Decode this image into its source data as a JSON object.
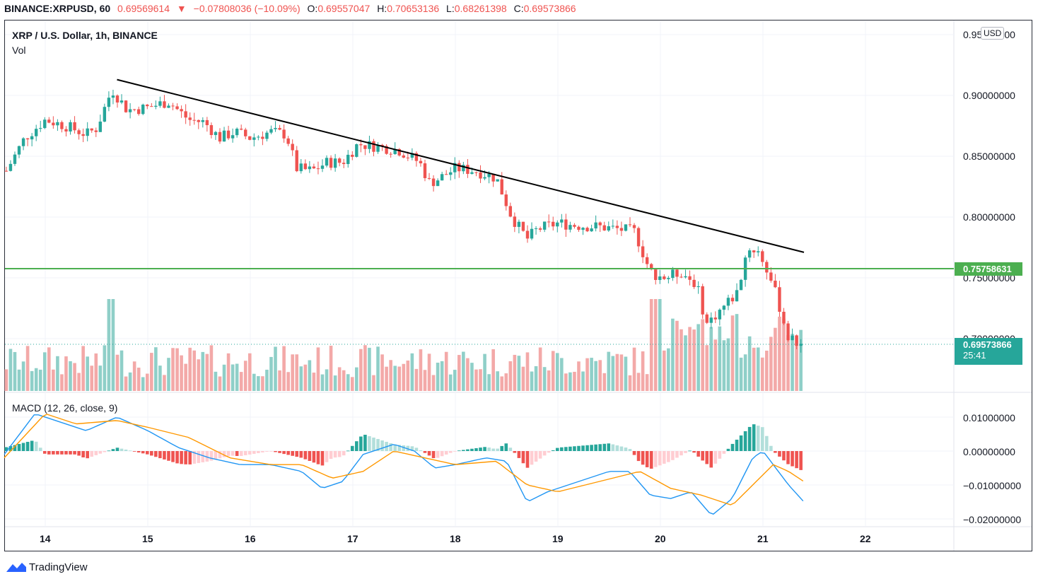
{
  "header": {
    "symbol": "BINANCE:XRPUSD, 60",
    "last": "0.69569614",
    "change": "−0.07808036 (−10.09%)",
    "o_label": "O:",
    "o": "0.69557047",
    "h_label": "H:",
    "h": "0.70653136",
    "l_label": "L:",
    "l": "0.68261398",
    "c_label": "C:",
    "c": "0.69573866"
  },
  "legend": {
    "title": "XRP / U.S. Dollar, 1h, BINANCE",
    "vol": "Vol",
    "macd": "MACD (12, 26, close, 9)"
  },
  "currency_button": "USD",
  "price_axis": [
    "0.95000000",
    "0.90000000",
    "0.85000000",
    "0.80000000",
    "0.75000000",
    "0.70000000"
  ],
  "macd_axis": [
    "0.01000000",
    "0.00000000",
    "−0.01000000",
    "−0.02000000"
  ],
  "level_tag": "0.75758631",
  "last_tag_price": "0.69573866",
  "last_tag_timer": "25:41",
  "x_axis": [
    "14",
    "15",
    "16",
    "17",
    "18",
    "19",
    "20",
    "21",
    "22"
  ],
  "brand": "TradingView",
  "colors": {
    "up": "#26a69a",
    "down": "#ef5350",
    "line": "#000000",
    "level": "#4caf50",
    "macd": "#2196f3",
    "signal": "#ff9800"
  },
  "chart_data": [
    {
      "type": "candlestick",
      "title": "XRP / U.S. Dollar, 1h, BINANCE",
      "x_ticks": [
        "14",
        "15",
        "16",
        "17",
        "18",
        "19",
        "20",
        "21",
        "22"
      ],
      "ylim": [
        0.69,
        0.955
      ],
      "close_path": [
        [
          13.6,
          0.835
        ],
        [
          13.8,
          0.865
        ],
        [
          14.0,
          0.88
        ],
        [
          14.2,
          0.875
        ],
        [
          14.4,
          0.868
        ],
        [
          14.5,
          0.873
        ],
        [
          14.65,
          0.905
        ],
        [
          14.8,
          0.888
        ],
        [
          15.0,
          0.89
        ],
        [
          15.2,
          0.895
        ],
        [
          15.4,
          0.88
        ],
        [
          15.55,
          0.878
        ],
        [
          15.7,
          0.865
        ],
        [
          15.85,
          0.87
        ],
        [
          16.0,
          0.865
        ],
        [
          16.2,
          0.87
        ],
        [
          16.35,
          0.868
        ],
        [
          16.45,
          0.84
        ],
        [
          16.6,
          0.838
        ],
        [
          16.75,
          0.845
        ],
        [
          16.9,
          0.845
        ],
        [
          17.05,
          0.86
        ],
        [
          17.25,
          0.858
        ],
        [
          17.45,
          0.855
        ],
        [
          17.65,
          0.845
        ],
        [
          17.75,
          0.828
        ],
        [
          17.85,
          0.832
        ],
        [
          18.0,
          0.84
        ],
        [
          18.2,
          0.838
        ],
        [
          18.4,
          0.832
        ],
        [
          18.55,
          0.8
        ],
        [
          18.7,
          0.782
        ],
        [
          18.8,
          0.79
        ],
        [
          19.0,
          0.795
        ],
        [
          19.2,
          0.793
        ],
        [
          19.4,
          0.792
        ],
        [
          19.6,
          0.79
        ],
        [
          19.75,
          0.788
        ],
        [
          19.9,
          0.755
        ],
        [
          20.05,
          0.75
        ],
        [
          20.2,
          0.755
        ],
        [
          20.35,
          0.745
        ],
        [
          20.45,
          0.712
        ],
        [
          20.6,
          0.725
        ],
        [
          20.75,
          0.738
        ],
        [
          20.85,
          0.775
        ],
        [
          20.95,
          0.772
        ],
        [
          21.05,
          0.755
        ],
        [
          21.15,
          0.73
        ],
        [
          21.25,
          0.7
        ],
        [
          21.35,
          0.6957
        ]
      ],
      "last_close": 0.69573866,
      "trendline": [
        [
          14.7,
          0.913
        ],
        [
          21.4,
          0.771
        ]
      ],
      "horizontal_level": 0.75758631
    },
    {
      "type": "bar",
      "title": "Vol",
      "pattern": "low volume bars through day 19, volume expanding sharply from day 20 with a spike at the start of day 20"
    },
    {
      "type": "line",
      "title": "MACD (12, 26, close, 9)",
      "ylim": [
        -0.022,
        0.012
      ],
      "series": [
        {
          "name": "MACD",
          "points": [
            [
              13.6,
              -0.001
            ],
            [
              13.9,
              0.011
            ],
            [
              14.1,
              0.009
            ],
            [
              14.4,
              0.006
            ],
            [
              14.7,
              0.01
            ],
            [
              15.0,
              0.006
            ],
            [
              15.3,
              0.001
            ],
            [
              15.6,
              -0.002
            ],
            [
              15.9,
              -0.004
            ],
            [
              16.2,
              -0.004
            ],
            [
              16.5,
              -0.006
            ],
            [
              16.7,
              -0.011
            ],
            [
              16.9,
              -0.009
            ],
            [
              17.1,
              -0.001
            ],
            [
              17.4,
              0.002
            ],
            [
              17.6,
              0.0
            ],
            [
              17.8,
              -0.005
            ],
            [
              18.0,
              -0.004
            ],
            [
              18.3,
              -0.002
            ],
            [
              18.5,
              -0.003
            ],
            [
              18.7,
              -0.015
            ],
            [
              18.9,
              -0.012
            ],
            [
              19.2,
              -0.009
            ],
            [
              19.5,
              -0.006
            ],
            [
              19.7,
              -0.006
            ],
            [
              19.9,
              -0.013
            ],
            [
              20.1,
              -0.014
            ],
            [
              20.3,
              -0.012
            ],
            [
              20.5,
              -0.019
            ],
            [
              20.7,
              -0.014
            ],
            [
              20.9,
              -0.002
            ],
            [
              21.0,
              0.0
            ],
            [
              21.1,
              -0.004
            ],
            [
              21.25,
              -0.01
            ],
            [
              21.4,
              -0.015
            ]
          ]
        },
        {
          "name": "Signal",
          "points": [
            [
              13.6,
              -0.002
            ],
            [
              14.0,
              0.011
            ],
            [
              14.3,
              0.008
            ],
            [
              14.7,
              0.009
            ],
            [
              15.0,
              0.007
            ],
            [
              15.4,
              0.004
            ],
            [
              15.8,
              -0.002
            ],
            [
              16.2,
              -0.004
            ],
            [
              16.5,
              -0.004
            ],
            [
              16.8,
              -0.008
            ],
            [
              17.1,
              -0.006
            ],
            [
              17.4,
              0.0
            ],
            [
              17.7,
              -0.002
            ],
            [
              18.0,
              -0.004
            ],
            [
              18.4,
              -0.003
            ],
            [
              18.7,
              -0.01
            ],
            [
              19.0,
              -0.012
            ],
            [
              19.4,
              -0.009
            ],
            [
              19.8,
              -0.006
            ],
            [
              20.1,
              -0.011
            ],
            [
              20.4,
              -0.013
            ],
            [
              20.7,
              -0.016
            ],
            [
              20.9,
              -0.01
            ],
            [
              21.1,
              -0.004
            ],
            [
              21.25,
              -0.006
            ],
            [
              21.4,
              -0.009
            ]
          ]
        }
      ]
    }
  ]
}
